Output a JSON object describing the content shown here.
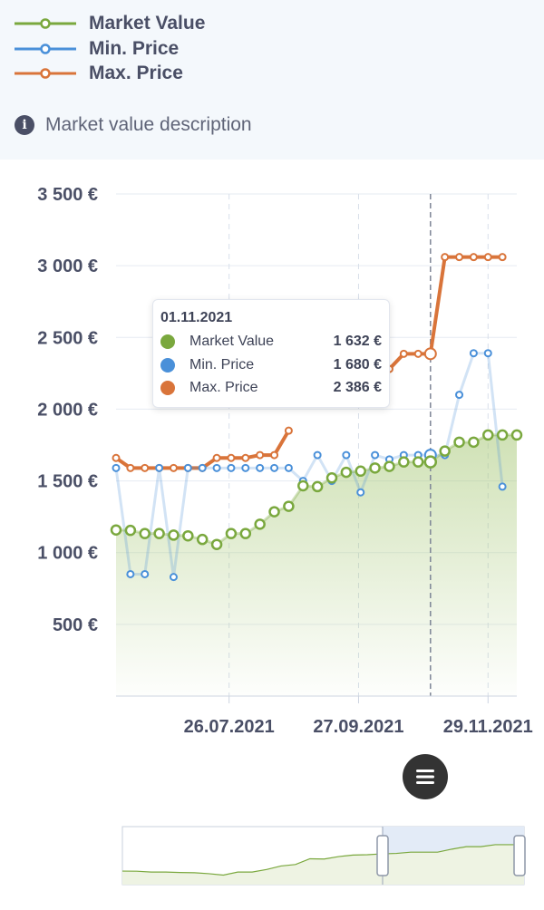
{
  "legend": {
    "items": [
      {
        "label": "Market Value",
        "color": "#7aa83e"
      },
      {
        "label": "Min. Price",
        "color": "#4a90d9"
      },
      {
        "label": "Max. Price",
        "color": "#d9743a"
      }
    ]
  },
  "description": {
    "label": "Market value description",
    "icon": "info-icon"
  },
  "tooltip": {
    "date": "01.11.2021",
    "rows": [
      {
        "name": "Market Value",
        "value": "1 632 €",
        "color": "#7aa83e"
      },
      {
        "name": "Min. Price",
        "value": "1 680 €",
        "color": "#4a90d9"
      },
      {
        "name": "Max. Price",
        "value": "2 386 €",
        "color": "#d9743a"
      }
    ]
  },
  "menu": {
    "icon": "hamburger-icon"
  },
  "chart_data": {
    "type": "line",
    "x_axis": {
      "type": "date",
      "ticks": [
        "26.07.2021",
        "27.09.2021",
        "29.11.2021"
      ],
      "tick_dates": [
        "2021-07-26",
        "2021-09-27",
        "2021-11-29"
      ]
    },
    "y_axis": {
      "ticks": [
        "500 €",
        "1 000 €",
        "1 500 €",
        "2 000 €",
        "2 500 €",
        "3 000 €",
        "3 500 €"
      ],
      "tick_values": [
        500,
        1000,
        1500,
        2000,
        2500,
        3000,
        3500
      ],
      "ylim": [
        0,
        3500
      ]
    },
    "grid": true,
    "highlighted_date": "2021-11-01",
    "x": [
      "2021-06-01",
      "2021-06-08",
      "2021-06-15",
      "2021-06-22",
      "2021-06-29",
      "2021-07-06",
      "2021-07-13",
      "2021-07-20",
      "2021-07-27",
      "2021-08-03",
      "2021-08-10",
      "2021-08-17",
      "2021-08-24",
      "2021-08-31",
      "2021-09-07",
      "2021-09-14",
      "2021-09-21",
      "2021-09-28",
      "2021-10-05",
      "2021-10-12",
      "2021-10-19",
      "2021-10-26",
      "2021-11-01",
      "2021-11-08",
      "2021-11-15",
      "2021-11-22",
      "2021-11-29",
      "2021-12-06",
      "2021-12-13"
    ],
    "series": [
      {
        "name": "Market Value",
        "color": "#7aa83e",
        "values": [
          1158,
          1155,
          1133,
          1133,
          1122,
          1117,
          1092,
          1057,
          1133,
          1133,
          1198,
          1285,
          1323,
          1466,
          1460,
          1521,
          1560,
          1568,
          1590,
          1601,
          1632,
          1632,
          1632,
          1708,
          1770,
          1770,
          1820,
          1820,
          1820
        ]
      },
      {
        "name": "Min. Price",
        "color": "#4a90d9",
        "values": [
          1590,
          850,
          850,
          1590,
          830,
          1590,
          1590,
          1590,
          1590,
          1590,
          1590,
          1590,
          1590,
          1500,
          1680,
          1500,
          1680,
          1420,
          1680,
          1650,
          1680,
          1680,
          1680,
          1680,
          2100,
          2390,
          2390,
          1460,
          null
        ]
      },
      {
        "name": "Max. Price",
        "color": "#d9743a",
        "values": [
          1660,
          1590,
          1590,
          1590,
          1590,
          1590,
          1590,
          1660,
          1660,
          1660,
          1680,
          1680,
          1850,
          null,
          null,
          null,
          null,
          null,
          2280,
          2280,
          2386,
          2386,
          2386,
          3060,
          3060,
          3060,
          3060,
          3060,
          null
        ]
      }
    ]
  }
}
